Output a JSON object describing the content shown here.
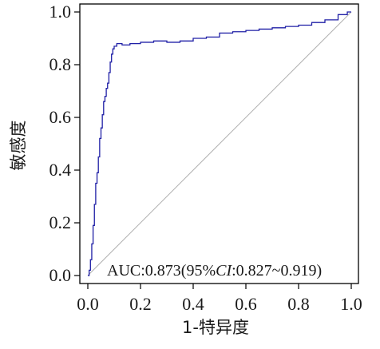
{
  "chart_data": {
    "type": "line",
    "xlabel": "1-特异度",
    "ylabel": "敏感度",
    "xlim": [
      0,
      1
    ],
    "ylim": [
      0,
      1
    ],
    "x_ticks": [
      "0.0",
      "0.2",
      "0.4",
      "0.6",
      "0.8",
      "1.0"
    ],
    "y_ticks": [
      "0.0",
      "0.2",
      "0.4",
      "0.6",
      "0.8",
      "1.0"
    ],
    "grid": false,
    "diagonal_reference": true,
    "annotation": {
      "prefix": "AUC:0.873(95%",
      "ci": "CI",
      "suffix": ":0.827~0.919)"
    },
    "colors": {
      "roc": "#1f1fa6",
      "diagonal": "#b0b0b0",
      "axis": "#000000"
    },
    "series": [
      {
        "x": [
          0,
          0.005,
          0.005,
          0.01,
          0.01,
          0.015,
          0.015,
          0.02,
          0.02,
          0.025,
          0.025,
          0.03,
          0.03,
          0.035,
          0.035,
          0.04,
          0.04,
          0.045,
          0.045,
          0.05,
          0.05,
          0.055,
          0.055,
          0.06,
          0.06,
          0.065,
          0.065,
          0.07,
          0.07,
          0.075,
          0.075,
          0.08,
          0.08,
          0.085,
          0.085,
          0.09,
          0.09,
          0.095,
          0.095,
          0.1,
          0.1,
          0.11,
          0.11,
          0.13,
          0.13,
          0.16,
          0.16,
          0.2,
          0.2,
          0.25,
          0.25,
          0.3,
          0.3,
          0.35,
          0.35,
          0.4,
          0.4,
          0.45,
          0.45,
          0.5,
          0.5,
          0.55,
          0.55,
          0.6,
          0.6,
          0.65,
          0.65,
          0.7,
          0.7,
          0.75,
          0.75,
          0.8,
          0.8,
          0.85,
          0.85,
          0.9,
          0.9,
          0.95,
          0.95,
          0.985,
          0.985,
          1.0
        ],
        "y": [
          0,
          0,
          0.02,
          0.02,
          0.06,
          0.06,
          0.12,
          0.12,
          0.19,
          0.19,
          0.27,
          0.27,
          0.35,
          0.35,
          0.39,
          0.39,
          0.45,
          0.45,
          0.52,
          0.52,
          0.56,
          0.56,
          0.61,
          0.61,
          0.66,
          0.66,
          0.68,
          0.68,
          0.71,
          0.71,
          0.73,
          0.73,
          0.77,
          0.77,
          0.81,
          0.81,
          0.84,
          0.84,
          0.86,
          0.86,
          0.87,
          0.87,
          0.88,
          0.88,
          0.875,
          0.875,
          0.88,
          0.88,
          0.885,
          0.885,
          0.89,
          0.89,
          0.885,
          0.885,
          0.89,
          0.89,
          0.9,
          0.9,
          0.905,
          0.905,
          0.92,
          0.92,
          0.925,
          0.925,
          0.93,
          0.93,
          0.935,
          0.935,
          0.94,
          0.94,
          0.945,
          0.945,
          0.95,
          0.95,
          0.96,
          0.96,
          0.97,
          0.97,
          0.99,
          0.99,
          1.0,
          1.0
        ]
      }
    ]
  }
}
